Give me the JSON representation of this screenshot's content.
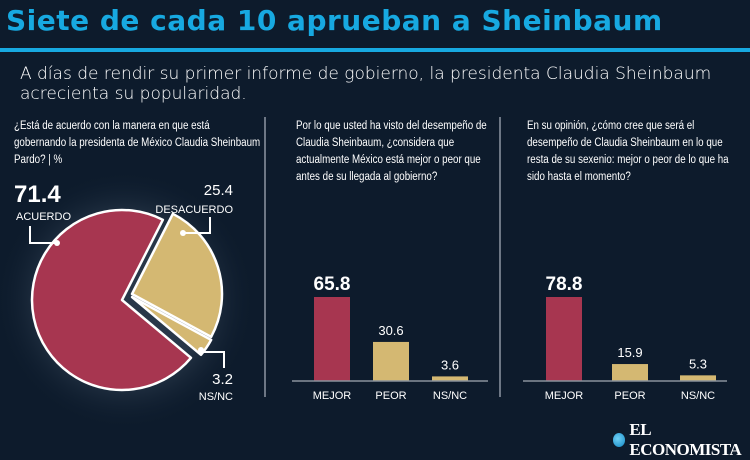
{
  "header": {
    "title": "Siete de cada 10 aprueban a Sheinbaum",
    "subtitle": "A días de rendir su primer informe de gobierno, la presidenta Claudia Sheinbaum acrecienta su popularidad."
  },
  "colors": {
    "accent": "#17a9e1",
    "red": "#a73650",
    "gold": "#d4b872",
    "background": "#0d1b2c"
  },
  "brand": {
    "logo": "EL ECONOMISTA"
  },
  "chart_data": [
    {
      "type": "pie",
      "title": "¿Está de acuerdo con la manera en que está gobernando la presidenta de México Claudia Sheinbaum Pardo? | %",
      "categories": [
        "ACUERDO",
        "DESACUERDO",
        "NS/NC"
      ],
      "values": [
        71.4,
        25.4,
        3.2
      ],
      "value_labels": [
        "71.4",
        "25.4",
        "3.2"
      ]
    },
    {
      "type": "bar",
      "title": "Por lo que usted ha visto del desempeño de Claudia Sheinbaum, ¿considera que actualmente México está mejor o peor que antes de su llegada al gobierno?",
      "categories": [
        "MEJOR",
        "PEOR",
        "NS/NC"
      ],
      "values": [
        65.8,
        30.6,
        3.6
      ],
      "value_labels": [
        "65.8",
        "30.6",
        "3.6"
      ]
    },
    {
      "type": "bar",
      "title": "En su opinión, ¿cómo cree que será el desempeño de Claudia Sheinbaum en lo que resta de su sexenio: mejor o peor de lo que ha sido hasta el momento?",
      "categories": [
        "MEJOR",
        "PEOR",
        "NS/NC"
      ],
      "values": [
        78.8,
        15.9,
        5.3
      ],
      "value_labels": [
        "78.8",
        "15.9",
        "5.3"
      ]
    }
  ]
}
